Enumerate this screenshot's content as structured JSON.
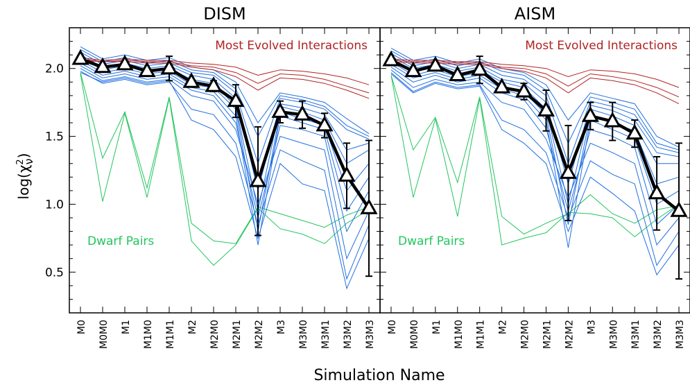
{
  "figure": {
    "xlabel": "Simulation Name",
    "ylabel_prefix": "log(χ",
    "ylabel_sup": "2",
    "ylabel_sub": "ν",
    "ylabel_suffix": ")",
    "colors": {
      "evolved": "#b22222",
      "typical": "#1f6fe0",
      "dwarf": "#22c55e",
      "mean": "#000000"
    }
  },
  "chart_data": [
    {
      "type": "line",
      "title": "DISM",
      "categories": [
        "M0",
        "M0M0",
        "M1",
        "M1M0",
        "M1M1",
        "M2",
        "M2M0",
        "M2M1",
        "M2M2",
        "M3",
        "M3M0",
        "M3M1",
        "M3M2",
        "M3M3"
      ],
      "ylim": [
        0.2,
        2.3
      ],
      "yticks": [
        0.5,
        1.0,
        1.5,
        2.0
      ],
      "ytick_labels": [
        "0.5",
        "1.0",
        "1.5",
        "2.0"
      ],
      "grid": false,
      "annotations": [
        {
          "text": "Most Evolved Interactions",
          "color": "#b22222"
        },
        {
          "text": "Dwarf Pairs",
          "color": "#22c55e"
        }
      ],
      "series": [
        {
          "group": "evolved",
          "values": [
            2.08,
            2.06,
            2.07,
            2.06,
            2.06,
            2.04,
            2.03,
            2.01,
            1.95,
            1.99,
            1.98,
            1.96,
            1.93,
            1.88
          ]
        },
        {
          "group": "evolved",
          "values": [
            2.07,
            2.05,
            2.06,
            2.05,
            2.05,
            2.02,
            2.01,
            1.97,
            1.89,
            1.96,
            1.95,
            1.92,
            1.87,
            1.82
          ]
        },
        {
          "group": "evolved",
          "values": [
            2.06,
            2.05,
            2.05,
            2.04,
            2.04,
            2.01,
            1.99,
            1.94,
            1.84,
            1.93,
            1.92,
            1.89,
            1.84,
            1.78
          ]
        },
        {
          "group": "typical",
          "values": [
            2.16,
            2.07,
            2.1,
            2.06,
            2.08,
            2.01,
            1.99,
            1.9,
            1.6,
            1.82,
            1.79,
            1.75,
            1.63,
            1.52
          ]
        },
        {
          "group": "typical",
          "values": [
            2.14,
            2.05,
            2.08,
            2.04,
            2.06,
            1.99,
            1.97,
            1.85,
            1.5,
            1.8,
            1.77,
            1.72,
            1.58,
            1.5
          ]
        },
        {
          "group": "typical",
          "values": [
            2.12,
            2.03,
            2.06,
            2.02,
            2.04,
            1.97,
            1.95,
            1.82,
            1.3,
            1.78,
            1.75,
            1.7,
            1.55,
            1.48
          ]
        },
        {
          "group": "typical",
          "values": [
            2.1,
            2.01,
            2.04,
            2.0,
            2.02,
            1.95,
            1.92,
            1.78,
            1.1,
            1.74,
            1.71,
            1.66,
            1.4,
            1.45
          ]
        },
        {
          "group": "typical",
          "values": [
            2.08,
            1.99,
            2.02,
            1.98,
            2.0,
            1.92,
            1.89,
            1.72,
            0.95,
            1.72,
            1.68,
            1.62,
            1.3,
            1.4
          ]
        },
        {
          "group": "typical",
          "values": [
            2.06,
            1.97,
            2.0,
            1.96,
            1.98,
            1.88,
            1.86,
            1.7,
            0.8,
            1.68,
            1.63,
            1.58,
            1.1,
            1.3
          ]
        },
        {
          "group": "typical",
          "values": [
            2.04,
            1.95,
            1.98,
            1.94,
            1.96,
            1.86,
            1.83,
            1.65,
            0.7,
            1.65,
            1.6,
            1.55,
            0.95,
            1.2
          ]
        },
        {
          "group": "typical",
          "values": [
            2.02,
            1.93,
            1.96,
            1.92,
            1.94,
            1.84,
            1.8,
            1.6,
            0.9,
            1.58,
            1.55,
            1.5,
            0.8,
            1.1
          ]
        },
        {
          "group": "typical",
          "values": [
            2.0,
            1.91,
            1.94,
            1.9,
            1.92,
            1.8,
            1.76,
            1.55,
            1.0,
            1.5,
            1.45,
            1.4,
            0.6,
            0.95
          ]
        },
        {
          "group": "typical",
          "values": [
            1.98,
            1.89,
            1.92,
            1.88,
            1.9,
            1.7,
            1.66,
            1.45,
            0.85,
            1.4,
            1.32,
            1.25,
            0.45,
            0.85
          ]
        },
        {
          "group": "typical",
          "values": [
            1.97,
            1.9,
            1.93,
            1.89,
            1.91,
            1.62,
            1.55,
            1.35,
            0.75,
            1.3,
            1.15,
            1.1,
            0.38,
            0.75
          ]
        },
        {
          "group": "dwarf",
          "values": [
            1.97,
            1.34,
            1.68,
            1.12,
            1.79,
            0.86,
            0.73,
            0.71,
            0.98,
            0.93,
            0.88,
            0.83,
            0.92,
            0.98
          ]
        },
        {
          "group": "dwarf",
          "values": [
            1.96,
            1.02,
            1.67,
            1.05,
            1.78,
            0.73,
            0.55,
            0.7,
            0.97,
            0.82,
            0.78,
            0.71,
            0.86,
            0.96
          ]
        },
        {
          "group": "mean",
          "name": "",
          "values": [
            2.07,
            2.01,
            2.03,
            1.98,
            2.0,
            1.9,
            1.87,
            1.76,
            1.17,
            1.68,
            1.66,
            1.58,
            1.21,
            0.97
          ],
          "errors": [
            0,
            0,
            0,
            0,
            0.09,
            0,
            0.04,
            0.12,
            0.4,
            0.08,
            0.1,
            0.09,
            0.24,
            0.5
          ]
        }
      ]
    },
    {
      "type": "line",
      "title": "AISM",
      "categories": [
        "M0",
        "M0M0",
        "M1",
        "M1M0",
        "M1M1",
        "M2",
        "M2M0",
        "M2M1",
        "M2M2",
        "M3",
        "M3M0",
        "M3M1",
        "M3M2",
        "M3M3"
      ],
      "ylim": [
        0.2,
        2.3
      ],
      "yticks": [
        0.5,
        1.0,
        1.5,
        2.0
      ],
      "grid": false,
      "annotations": [
        {
          "text": "Most Evolved Interactions",
          "color": "#b22222"
        },
        {
          "text": "Dwarf Pairs",
          "color": "#22c55e"
        }
      ],
      "series": [
        {
          "group": "evolved",
          "values": [
            2.07,
            2.06,
            2.06,
            2.05,
            2.05,
            2.03,
            2.02,
            2.0,
            1.94,
            1.99,
            1.98,
            1.96,
            1.92,
            1.86
          ]
        },
        {
          "group": "evolved",
          "values": [
            2.06,
            2.05,
            2.05,
            2.04,
            2.04,
            2.01,
            2.0,
            1.96,
            1.87,
            1.96,
            1.94,
            1.91,
            1.86,
            1.79
          ]
        },
        {
          "group": "evolved",
          "values": [
            2.05,
            2.04,
            2.04,
            2.03,
            2.03,
            2.0,
            1.98,
            1.93,
            1.82,
            1.93,
            1.91,
            1.88,
            1.82,
            1.74
          ]
        },
        {
          "group": "typical",
          "values": [
            2.15,
            2.06,
            2.09,
            2.04,
            2.07,
            2.0,
            1.97,
            1.88,
            1.62,
            1.82,
            1.78,
            1.74,
            1.5,
            1.42
          ]
        },
        {
          "group": "typical",
          "values": [
            2.13,
            2.04,
            2.07,
            2.02,
            2.05,
            1.98,
            1.95,
            1.84,
            1.45,
            1.79,
            1.75,
            1.7,
            1.45,
            1.4
          ]
        },
        {
          "group": "typical",
          "values": [
            2.11,
            2.02,
            2.05,
            2.0,
            2.03,
            1.95,
            1.92,
            1.8,
            1.3,
            1.76,
            1.72,
            1.66,
            1.42,
            1.38
          ]
        },
        {
          "group": "typical",
          "values": [
            2.09,
            2.0,
            2.03,
            1.98,
            2.01,
            1.92,
            1.89,
            1.75,
            1.15,
            1.73,
            1.69,
            1.62,
            1.38,
            1.35
          ]
        },
        {
          "group": "typical",
          "values": [
            2.07,
            1.98,
            2.01,
            1.96,
            1.99,
            1.9,
            1.86,
            1.7,
            1.0,
            1.7,
            1.65,
            1.58,
            1.3,
            1.3
          ]
        },
        {
          "group": "typical",
          "values": [
            2.05,
            1.95,
            1.99,
            1.94,
            1.97,
            1.87,
            1.83,
            1.66,
            0.85,
            1.66,
            1.6,
            1.54,
            1.15,
            1.2
          ]
        },
        {
          "group": "typical",
          "values": [
            2.03,
            1.93,
            1.97,
            1.92,
            1.95,
            1.85,
            1.8,
            1.62,
            0.68,
            1.62,
            1.55,
            1.48,
            1.0,
            1.1
          ]
        },
        {
          "group": "typical",
          "values": [
            2.01,
            1.9,
            1.95,
            1.9,
            1.93,
            1.82,
            1.77,
            1.56,
            0.95,
            1.55,
            1.5,
            1.42,
            0.85,
            1.0
          ]
        },
        {
          "group": "typical",
          "values": [
            1.99,
            1.86,
            1.92,
            1.88,
            1.9,
            1.75,
            1.7,
            1.48,
            1.05,
            1.45,
            1.38,
            1.3,
            0.7,
            0.9
          ]
        },
        {
          "group": "typical",
          "values": [
            1.97,
            1.83,
            1.9,
            1.86,
            1.88,
            1.62,
            1.55,
            1.38,
            0.9,
            1.32,
            1.22,
            1.15,
            0.55,
            0.8
          ]
        },
        {
          "group": "typical",
          "values": [
            1.96,
            1.82,
            1.89,
            1.85,
            1.87,
            1.55,
            1.45,
            1.3,
            0.8,
            1.2,
            1.08,
            0.95,
            0.48,
            0.7
          ]
        },
        {
          "group": "dwarf",
          "values": [
            1.95,
            1.4,
            1.64,
            1.16,
            1.79,
            0.91,
            0.78,
            0.86,
            0.93,
            1.07,
            0.93,
            0.86,
            0.96,
            0.99
          ]
        },
        {
          "group": "dwarf",
          "values": [
            1.95,
            1.05,
            1.63,
            0.91,
            1.78,
            0.7,
            0.75,
            0.79,
            0.94,
            0.93,
            0.9,
            0.76,
            0.89,
            1.0
          ]
        },
        {
          "group": "mean",
          "name": "",
          "values": [
            2.06,
            1.98,
            2.02,
            1.95,
            1.99,
            1.86,
            1.83,
            1.69,
            1.23,
            1.65,
            1.61,
            1.52,
            1.08,
            0.95
          ],
          "errors": [
            0,
            0,
            0,
            0,
            0.1,
            0,
            0.06,
            0.15,
            0.35,
            0.1,
            0.14,
            0.1,
            0.27,
            0.5
          ]
        }
      ]
    }
  ]
}
